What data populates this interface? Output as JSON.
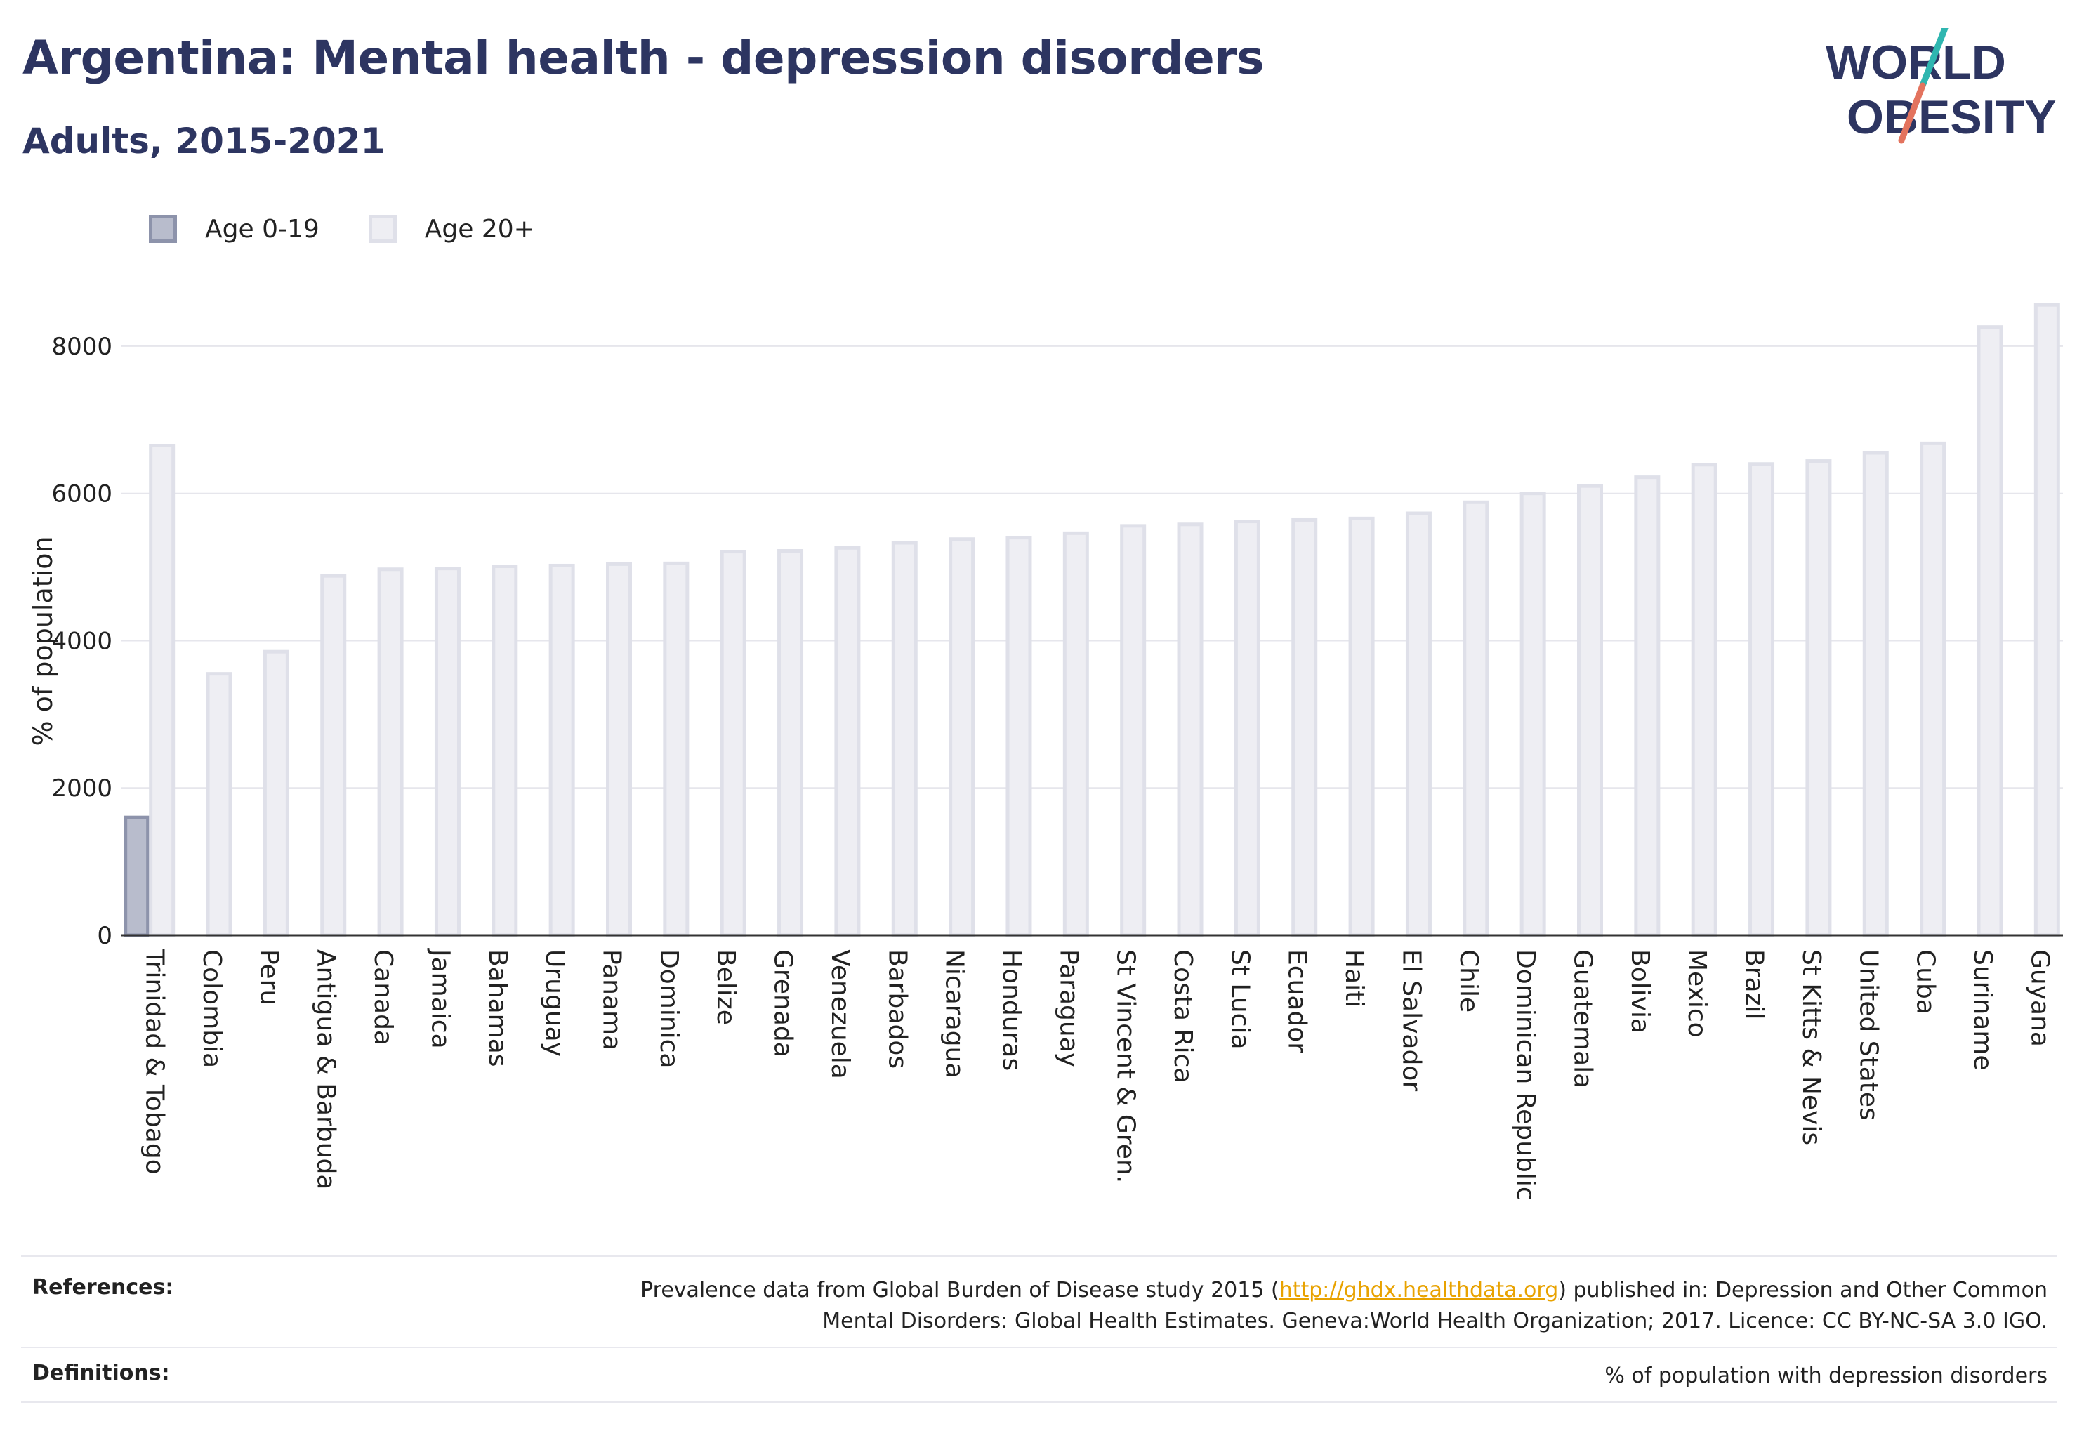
{
  "header": {
    "title": "Argentina: Mental health - depression disorders",
    "subtitle": "Adults, 2015-2021"
  },
  "logo": {
    "line1": "WORLD",
    "line2": "OBESITY"
  },
  "legend": [
    {
      "label": "Age 0-19",
      "color": "#b8bccc"
    },
    {
      "label": "Age 20+",
      "color": "#eeeef3"
    }
  ],
  "chart_data": {
    "type": "bar",
    "ylabel": "% of population",
    "ylim": [
      0,
      8600
    ],
    "yticks": [
      0,
      2000,
      4000,
      6000,
      8000
    ],
    "grid": true,
    "legend_position": "top-left",
    "categories": [
      "Trinidad & Tobago",
      "Colombia",
      "Peru",
      "Antigua & Barbuda",
      "Canada",
      "Jamaica",
      "Bahamas",
      "Uruguay",
      "Panama",
      "Dominica",
      "Belize",
      "Grenada",
      "Venezuela",
      "Barbados",
      "Nicaragua",
      "Honduras",
      "Paraguay",
      "St Vincent & Gren.",
      "Costa Rica",
      "St Lucia",
      "Ecuador",
      "Haiti",
      "El Salvador",
      "Chile",
      "Dominican Republic",
      "Guatemala",
      "Bolivia",
      "Mexico",
      "Brazil",
      "St Kitts & Nevis",
      "United States",
      "Cuba",
      "Suriname",
      "Guyana"
    ],
    "series": [
      {
        "name": "Age 0-19",
        "color": "#b8bccc",
        "stroke": "#8d93ab",
        "values": [
          1600,
          null,
          null,
          null,
          null,
          null,
          null,
          null,
          null,
          null,
          null,
          null,
          null,
          null,
          null,
          null,
          null,
          null,
          null,
          null,
          null,
          null,
          null,
          null,
          null,
          null,
          null,
          null,
          null,
          null,
          null,
          null,
          null,
          null
        ]
      },
      {
        "name": "Age 20+",
        "color": "#eeeef3",
        "stroke": "#dfe0e9",
        "values": [
          6650,
          3550,
          3850,
          4880,
          4970,
          4980,
          5010,
          5020,
          5040,
          5050,
          5210,
          5220,
          5260,
          5330,
          5380,
          5400,
          5460,
          5560,
          5580,
          5620,
          5640,
          5660,
          5730,
          5880,
          6000,
          6100,
          6220,
          6390,
          6400,
          6440,
          6550,
          6680,
          8260,
          8560
        ]
      }
    ]
  },
  "footer": {
    "references_label": "References:",
    "references_text_before": "Prevalence data from Global Burden of Disease study 2015 (",
    "references_link": "http://ghdx.healthdata.org",
    "references_text_after": ") published in: Depression and Other Common",
    "references_line2": "Mental Disorders: Global Health Estimates. Geneva:World Health Organization; 2017. Licence: CC BY-NC-SA 3.0 IGO.",
    "definitions_label": "Definitions:",
    "definitions_text": "% of population with depression disorders"
  }
}
